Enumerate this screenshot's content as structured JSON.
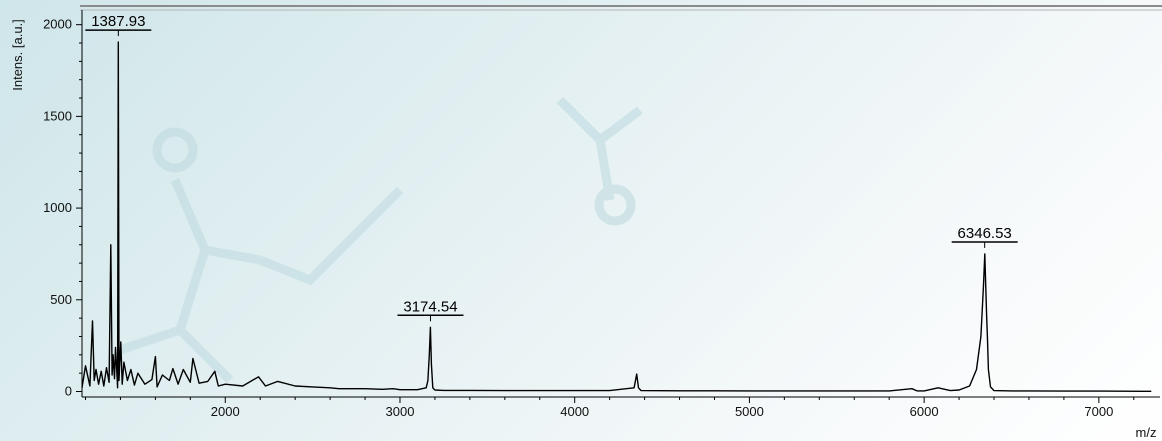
{
  "chart_data": {
    "type": "line",
    "title": "",
    "xlabel": "m/z",
    "ylabel": "Intens. [a.u.]",
    "xlim": [
      1180,
      7350
    ],
    "ylim": [
      -30,
      2080
    ],
    "x_ticks": [
      2000,
      3000,
      4000,
      5000,
      6000,
      7000
    ],
    "y_ticks": [
      0,
      500,
      1000,
      1500,
      2000
    ],
    "x_tick_labels": [
      "2000",
      "3000",
      "4000",
      "5000",
      "6000",
      "7000"
    ],
    "y_tick_labels": [
      "0",
      "500",
      "1000",
      "1500",
      "2000"
    ],
    "grid": false,
    "series": [
      {
        "name": "",
        "x": [
          1180,
          1200,
          1225,
          1240,
          1250,
          1260,
          1275,
          1290,
          1305,
          1320,
          1335,
          1345,
          1352,
          1358,
          1366,
          1372,
          1380,
          1384,
          1388,
          1392,
          1396,
          1402,
          1410,
          1420,
          1440,
          1460,
          1480,
          1500,
          1540,
          1580,
          1600,
          1610,
          1640,
          1680,
          1700,
          1730,
          1760,
          1800,
          1815,
          1850,
          1900,
          1940,
          1960,
          2000,
          2100,
          2190,
          2230,
          2300,
          2400,
          2500,
          2600,
          2650,
          2800,
          2900,
          2960,
          3000,
          3100,
          3150,
          3160,
          3168,
          3174,
          3180,
          3188,
          3200,
          3250,
          3400,
          3600,
          3800,
          4000,
          4200,
          4340,
          4355,
          4365,
          4380,
          4600,
          4800,
          5000,
          5100,
          5400,
          5700,
          5800,
          5930,
          5960,
          6000,
          6080,
          6150,
          6200,
          6260,
          6300,
          6325,
          6340,
          6347,
          6352,
          6358,
          6362,
          6368,
          6380,
          6400,
          6500,
          6600,
          6800,
          7000,
          7300
        ],
        "y": [
          20,
          140,
          30,
          385,
          60,
          120,
          40,
          110,
          30,
          130,
          50,
          800,
          90,
          200,
          70,
          240,
          100,
          20,
          1905,
          60,
          150,
          270,
          40,
          160,
          60,
          120,
          35,
          100,
          40,
          65,
          190,
          25,
          90,
          60,
          125,
          40,
          120,
          50,
          180,
          45,
          55,
          110,
          30,
          40,
          30,
          80,
          30,
          55,
          30,
          25,
          20,
          15,
          15,
          12,
          15,
          10,
          10,
          20,
          60,
          200,
          350,
          150,
          20,
          8,
          6,
          6,
          5,
          5,
          5,
          5,
          20,
          95,
          20,
          5,
          4,
          4,
          3,
          3,
          3,
          3,
          3,
          15,
          3,
          3,
          20,
          5,
          8,
          30,
          120,
          300,
          580,
          750,
          600,
          400,
          300,
          120,
          25,
          5,
          3,
          3,
          2,
          2,
          1
        ]
      }
    ],
    "annotations": [
      {
        "x": 1387.93,
        "y": 1905,
        "label": "1387.93"
      },
      {
        "x": 3174.54,
        "y": 350,
        "label": "3174.54"
      },
      {
        "x": 6346.53,
        "y": 750,
        "label": "6346.53"
      }
    ]
  }
}
